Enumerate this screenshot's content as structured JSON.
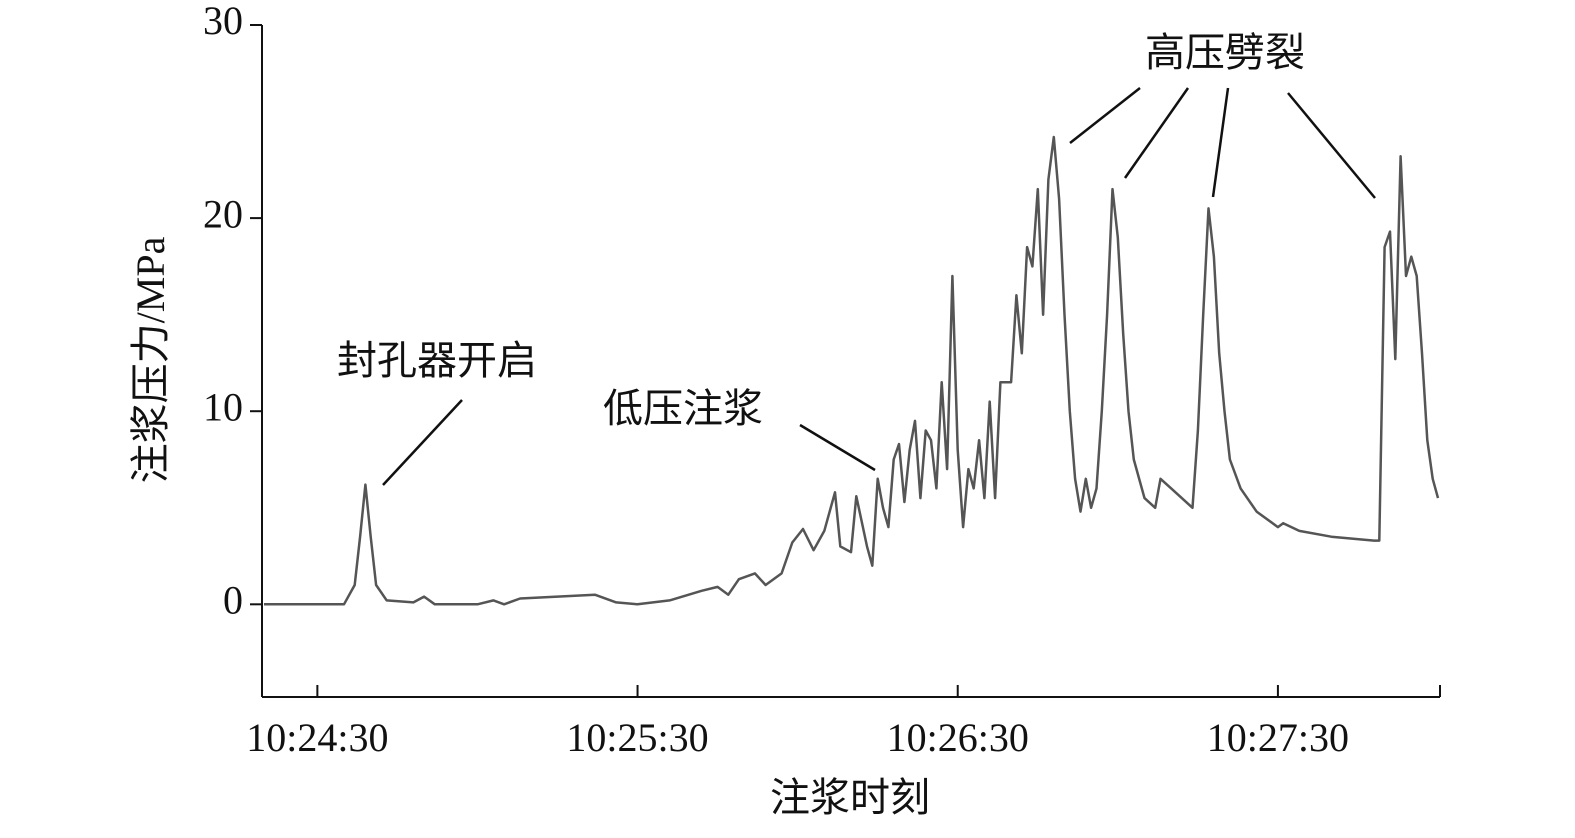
{
  "chart_data": {
    "type": "line",
    "y_label": "注浆压力/MPa",
    "x_label": "注浆时刻",
    "annotations": [
      {
        "text": "封孔器开启"
      },
      {
        "text": "低压注浆"
      },
      {
        "text": "高压劈裂"
      }
    ],
    "color": "#555555",
    "x": [
      "10:24:20",
      "10:24:35",
      "10:24:37",
      "10:24:38",
      "10:24:39",
      "10:24:40",
      "10:24:41",
      "10:24:43",
      "10:24:48",
      "10:24:50",
      "10:24:52",
      "10:25:00",
      "10:25:03",
      "10:25:05",
      "10:25:08",
      "10:25:15",
      "10:25:22",
      "10:25:26",
      "10:25:30",
      "10:25:36",
      "10:25:42",
      "10:25:45",
      "10:25:47",
      "10:25:49",
      "10:25:52",
      "10:25:54",
      "10:25:57",
      "10:25:59",
      "10:26:01",
      "10:26:03",
      "10:26:05",
      "10:26:07",
      "10:26:08",
      "10:26:10",
      "10:26:11",
      "10:26:13",
      "10:26:14",
      "10:26:15",
      "10:26:16",
      "10:26:17",
      "10:26:18",
      "10:26:19",
      "10:26:20",
      "10:26:21",
      "10:26:22",
      "10:26:23",
      "10:26:24",
      "10:26:25",
      "10:26:26",
      "10:26:27",
      "10:26:28",
      "10:26:29",
      "10:26:30",
      "10:26:31",
      "10:26:32",
      "10:26:33",
      "10:26:34",
      "10:26:35",
      "10:26:36",
      "10:26:37",
      "10:26:38",
      "10:26:40",
      "10:26:41",
      "10:26:42",
      "10:26:43",
      "10:26:44",
      "10:26:45",
      "10:26:46",
      "10:26:47",
      "10:26:48",
      "10:26:49",
      "10:26:50",
      "10:26:51",
      "10:26:52",
      "10:26:53",
      "10:26:54",
      "10:26:55",
      "10:26:56",
      "10:26:57",
      "10:26:58",
      "10:26:59",
      "10:27:00",
      "10:27:01",
      "10:27:02",
      "10:27:03",
      "10:27:05",
      "10:27:07",
      "10:27:08",
      "10:27:10",
      "10:27:14",
      "10:27:15",
      "10:27:16",
      "10:27:17",
      "10:27:18",
      "10:27:19",
      "10:27:20",
      "10:27:21",
      "10:27:23",
      "10:27:26",
      "10:27:30",
      "10:27:31",
      "10:27:34",
      "10:27:40",
      "10:27:48",
      "10:27:49",
      "10:27:50",
      "10:27:51",
      "10:27:52",
      "10:27:53",
      "10:27:54",
      "10:27:55",
      "10:27:56",
      "10:27:57",
      "10:27:58",
      "10:27:59",
      "10:28:00"
    ],
    "values": [
      0,
      0,
      1.0,
      3.5,
      6.2,
      3.5,
      1.0,
      0.2,
      0.1,
      0.4,
      0,
      0,
      0.2,
      0,
      0.3,
      0.4,
      0.5,
      0.1,
      0,
      0.2,
      0.7,
      0.9,
      0.5,
      1.3,
      1.6,
      1.0,
      1.6,
      3.2,
      3.9,
      2.8,
      3.8,
      5.8,
      3.0,
      2.7,
      5.6,
      3.0,
      2.0,
      6.5,
      5.0,
      4.0,
      7.5,
      8.3,
      5.3,
      8.0,
      9.5,
      5.5,
      9.0,
      8.5,
      6.0,
      11.5,
      7.0,
      17.0,
      8.0,
      4.0,
      7.0,
      6.0,
      8.5,
      5.5,
      10.5,
      5.5,
      11.5,
      11.5,
      16.0,
      13.0,
      18.5,
      17.5,
      21.5,
      15.0,
      22.0,
      24.2,
      21,
      15,
      10,
      6.5,
      4.8,
      6.5,
      5.0,
      6.0,
      10,
      15,
      21.5,
      19,
      14,
      10,
      7.5,
      5.5,
      5.0,
      6.5,
      6.0,
      5.0,
      9,
      15,
      20.5,
      18,
      13,
      10,
      7.5,
      6.0,
      4.8,
      4.0,
      4.2,
      3.8,
      3.5,
      3.3,
      3.3,
      18.5,
      19.3,
      12.7,
      23.2,
      17,
      18,
      17,
      13,
      8.5,
      6.5,
      5.5
    ],
    "xlim": [
      "10:24:20",
      "10:28:00"
    ],
    "xticks": [
      "10:24:30",
      "10:25:30",
      "10:26:30",
      "10:27:30"
    ],
    "ylim": [
      -4.8,
      30
    ],
    "yticks": [
      0,
      10,
      20,
      30
    ],
    "grid": false
  }
}
